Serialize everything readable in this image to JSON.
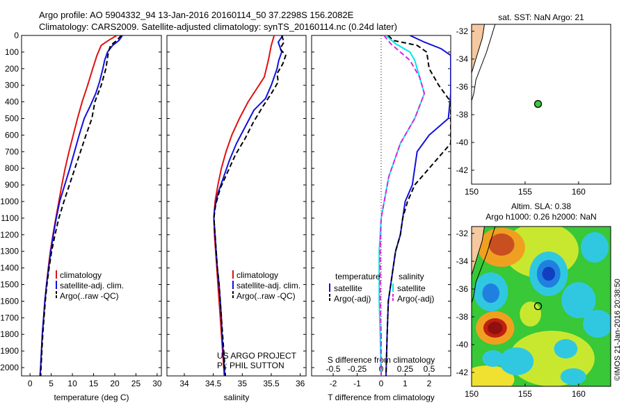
{
  "header": {
    "line1": "Argo profile: AO 5904332_94 13-Jan-2016 20160114_50 37.2298S 156.2082E",
    "line2": "Climatology: CARS2009. Satellite-adjusted climatology: synTS_20160114.nc (0.24d later)"
  },
  "colors": {
    "climatology": "#e01010",
    "satellite": "#1010e0",
    "argo": "#000000",
    "sat_salinity": "#00e8e8",
    "argo_salinity_diff": "#e020e0",
    "land": "#f5c8a0"
  },
  "chart_data": [
    {
      "type": "line",
      "xlabel": "temperature (deg C)",
      "ylim": [
        2050,
        0
      ],
      "xlim": [
        -2,
        31
      ],
      "x_ticks": [
        0,
        5,
        10,
        15,
        20,
        25,
        30
      ],
      "y_ticks": [
        0,
        100,
        200,
        300,
        400,
        500,
        600,
        700,
        800,
        900,
        1000,
        1100,
        1200,
        1300,
        1400,
        1500,
        1600,
        1700,
        1800,
        1900,
        2000
      ],
      "legend": [
        "climatology",
        "satellite-adj. clim.",
        "Argo(..raw -QC)"
      ],
      "series": [
        {
          "name": "climatology",
          "color": "#e01010",
          "dash": "",
          "points": [
            [
              20.5,
              0
            ],
            [
              18.5,
              30
            ],
            [
              16.8,
              60
            ],
            [
              15.8,
              120
            ],
            [
              14.8,
              200
            ],
            [
              13.6,
              300
            ],
            [
              12.3,
              400
            ],
            [
              11.2,
              500
            ],
            [
              10.2,
              600
            ],
            [
              9.2,
              700
            ],
            [
              8.3,
              800
            ],
            [
              7.5,
              900
            ],
            [
              6.8,
              1000
            ],
            [
              6.1,
              1100
            ],
            [
              5.4,
              1200
            ],
            [
              4.8,
              1300
            ],
            [
              4.3,
              1400
            ],
            [
              3.9,
              1500
            ],
            [
              3.5,
              1600
            ],
            [
              3.2,
              1700
            ],
            [
              2.9,
              1800
            ],
            [
              2.7,
              1900
            ],
            [
              2.5,
              2000
            ],
            [
              2.4,
              2060
            ]
          ]
        },
        {
          "name": "satellite-adj. clim.",
          "color": "#1010e0",
          "dash": "",
          "points": [
            [
              21.8,
              0
            ],
            [
              21.0,
              30
            ],
            [
              19.5,
              60
            ],
            [
              18.3,
              100
            ],
            [
              17.6,
              150
            ],
            [
              17.2,
              200
            ],
            [
              16.4,
              280
            ],
            [
              15.5,
              350
            ],
            [
              14.1,
              430
            ],
            [
              12.8,
              500
            ],
            [
              11.6,
              600
            ],
            [
              10.5,
              700
            ],
            [
              9.4,
              800
            ],
            [
              8.2,
              900
            ],
            [
              7.0,
              1000
            ],
            [
              6.2,
              1100
            ],
            [
              5.5,
              1200
            ],
            [
              4.9,
              1300
            ],
            [
              4.4,
              1400
            ],
            [
              3.9,
              1500
            ],
            [
              3.5,
              1600
            ],
            [
              3.2,
              1700
            ],
            [
              2.9,
              1800
            ],
            [
              2.7,
              1900
            ],
            [
              2.5,
              2000
            ],
            [
              2.3,
              2060
            ]
          ]
        },
        {
          "name": "Argo(..raw -QC)",
          "color": "#000000",
          "dash": "7,4",
          "points": [
            [
              21.5,
              0
            ],
            [
              20.5,
              30
            ],
            [
              19.0,
              60
            ],
            [
              18.5,
              100
            ],
            [
              17.9,
              200
            ],
            [
              16.8,
              300
            ],
            [
              15.3,
              400
            ],
            [
              14.6,
              500
            ],
            [
              13.2,
              600
            ],
            [
              11.9,
              700
            ],
            [
              10.6,
              800
            ],
            [
              9.3,
              900
            ],
            [
              8.0,
              1000
            ],
            [
              6.8,
              1100
            ],
            [
              5.9,
              1200
            ],
            [
              5.1,
              1300
            ],
            [
              4.5,
              1400
            ],
            [
              4.0,
              1500
            ],
            [
              3.6,
              1600
            ],
            [
              3.3,
              1700
            ],
            [
              3.0,
              1800
            ],
            [
              2.8,
              1900
            ],
            [
              2.6,
              2000
            ],
            [
              2.5,
              2060
            ]
          ]
        }
      ]
    },
    {
      "type": "line",
      "xlabel": "salinity",
      "ylim": [
        2050,
        0
      ],
      "xlim": [
        33.7,
        36.1
      ],
      "x_ticks": [
        34,
        34.5,
        35,
        35.5,
        36
      ],
      "legend": [
        "climatology",
        "satellite-adj. clim.",
        "Argo(..raw -QC)"
      ],
      "annotation": [
        "US ARGO PROJECT",
        "PI: PHIL SUTTON"
      ],
      "series": [
        {
          "name": "climatology",
          "color": "#e01010",
          "dash": "",
          "points": [
            [
              35.55,
              0
            ],
            [
              35.5,
              60
            ],
            [
              35.45,
              150
            ],
            [
              35.38,
              250
            ],
            [
              35.25,
              320
            ],
            [
              35.1,
              400
            ],
            [
              34.95,
              500
            ],
            [
              34.82,
              600
            ],
            [
              34.72,
              700
            ],
            [
              34.64,
              800
            ],
            [
              34.58,
              900
            ],
            [
              34.53,
              1000
            ],
            [
              34.51,
              1100
            ],
            [
              34.52,
              1200
            ],
            [
              34.54,
              1300
            ],
            [
              34.56,
              1400
            ],
            [
              34.58,
              1500
            ],
            [
              34.6,
              1600
            ],
            [
              34.62,
              1700
            ],
            [
              34.64,
              1800
            ],
            [
              34.66,
              1900
            ],
            [
              34.68,
              2000
            ],
            [
              34.69,
              2060
            ]
          ]
        },
        {
          "name": "satellite-adj. clim.",
          "color": "#1010e0",
          "dash": "",
          "points": [
            [
              35.7,
              0
            ],
            [
              35.62,
              40
            ],
            [
              35.68,
              100
            ],
            [
              35.63,
              150
            ],
            [
              35.6,
              200
            ],
            [
              35.55,
              250
            ],
            [
              35.5,
              300
            ],
            [
              35.4,
              380
            ],
            [
              35.2,
              450
            ],
            [
              35.05,
              550
            ],
            [
              34.9,
              650
            ],
            [
              34.78,
              750
            ],
            [
              34.68,
              850
            ],
            [
              34.58,
              950
            ],
            [
              34.52,
              1050
            ],
            [
              34.51,
              1100
            ],
            [
              34.53,
              1200
            ],
            [
              34.55,
              1300
            ],
            [
              34.57,
              1400
            ],
            [
              34.6,
              1500
            ],
            [
              34.62,
              1600
            ],
            [
              34.64,
              1700
            ],
            [
              34.65,
              1800
            ],
            [
              34.67,
              1900
            ],
            [
              34.69,
              2000
            ],
            [
              34.7,
              2060
            ]
          ]
        },
        {
          "name": "Argo(..raw -QC)",
          "color": "#000000",
          "dash": "7,4",
          "points": [
            [
              35.68,
              0
            ],
            [
              35.72,
              40
            ],
            [
              35.65,
              80
            ],
            [
              35.75,
              120
            ],
            [
              35.7,
              170
            ],
            [
              35.6,
              230
            ],
            [
              35.62,
              280
            ],
            [
              35.5,
              350
            ],
            [
              35.35,
              430
            ],
            [
              35.18,
              530
            ],
            [
              35.05,
              620
            ],
            [
              34.88,
              720
            ],
            [
              34.75,
              820
            ],
            [
              34.62,
              920
            ],
            [
              34.54,
              1020
            ],
            [
              34.51,
              1100
            ],
            [
              34.53,
              1200
            ],
            [
              34.55,
              1300
            ],
            [
              34.57,
              1400
            ],
            [
              34.6,
              1500
            ],
            [
              34.62,
              1600
            ],
            [
              34.64,
              1700
            ],
            [
              34.66,
              1800
            ],
            [
              34.68,
              1900
            ],
            [
              34.7,
              2000
            ],
            [
              34.71,
              2060
            ]
          ]
        }
      ]
    },
    {
      "type": "line",
      "xlabel": "T difference from climatology",
      "top_label": "S difference from climatology",
      "ylim": [
        2050,
        0
      ],
      "xlim": [
        -2.9,
        2.9
      ],
      "x_ticks": [
        -2,
        -1,
        0,
        1,
        2
      ],
      "top_ticks": [
        {
          "v": -0.5,
          "t": "-0.5"
        },
        {
          "v": -0.25,
          "t": "-0.25"
        },
        {
          "v": 0,
          "t": "0"
        },
        {
          "v": 0.25,
          "t": "0.25"
        },
        {
          "v": 0.5,
          "t": "0.5"
        }
      ],
      "s_scale": 4,
      "legend_t_title": "temperature",
      "legend_s_title": "salinity",
      "legend_t": [
        "satellite",
        "Argo(-adj)"
      ],
      "legend_s": [
        "satellite",
        "Argo(-adj)"
      ],
      "series": [
        {
          "name": "satellite",
          "color": "#1010e0",
          "dash": "",
          "scale": "T",
          "points": [
            [
              1.2,
              0
            ],
            [
              1.8,
              40
            ],
            [
              2.5,
              80
            ],
            [
              2.9,
              120
            ],
            [
              2.9,
              350
            ],
            [
              2.8,
              500
            ],
            [
              2.0,
              600
            ],
            [
              1.5,
              700
            ],
            [
              1.3,
              900
            ],
            [
              1.0,
              1000
            ],
            [
              0.9,
              1100
            ],
            [
              0.8,
              1200
            ],
            [
              0.6,
              1300
            ],
            [
              0.5,
              1400
            ],
            [
              0.4,
              1500
            ],
            [
              0.3,
              1600
            ],
            [
              0.25,
              1800
            ],
            [
              0.2,
              2060
            ]
          ]
        },
        {
          "name": "Argo(-adj)",
          "color": "#000000",
          "dash": "7,4",
          "scale": "T",
          "points": [
            [
              0.3,
              0
            ],
            [
              0.5,
              30
            ],
            [
              1.5,
              60
            ],
            [
              1.9,
              100
            ],
            [
              2.0,
              200
            ],
            [
              2.4,
              300
            ],
            [
              2.9,
              400
            ],
            [
              2.9,
              650
            ],
            [
              2.0,
              800
            ],
            [
              1.4,
              900
            ],
            [
              1.1,
              1000
            ],
            [
              0.9,
              1100
            ],
            [
              0.8,
              1200
            ],
            [
              0.6,
              1300
            ],
            [
              0.5,
              1400
            ],
            [
              0.4,
              1500
            ],
            [
              0.3,
              1600
            ],
            [
              0.25,
              1800
            ],
            [
              0.2,
              2060
            ]
          ]
        },
        {
          "name": "satellite",
          "color": "#00e8e8",
          "dash": "",
          "scale": "S",
          "points": [
            [
              0.05,
              0
            ],
            [
              0.15,
              50
            ],
            [
              0.3,
              100
            ],
            [
              0.35,
              150
            ],
            [
              0.4,
              250
            ],
            [
              0.45,
              350
            ],
            [
              0.35,
              500
            ],
            [
              0.2,
              650
            ],
            [
              0.08,
              850
            ],
            [
              0.0,
              1100
            ],
            [
              -0.02,
              1300
            ],
            [
              -0.02,
              1600
            ],
            [
              -0.01,
              1800
            ],
            [
              0.0,
              2060
            ]
          ]
        },
        {
          "name": "Argo(-adj)",
          "color": "#e020e0",
          "dash": "7,4",
          "scale": "S",
          "points": [
            [
              0.03,
              0
            ],
            [
              0.1,
              50
            ],
            [
              0.2,
              100
            ],
            [
              0.3,
              150
            ],
            [
              0.4,
              250
            ],
            [
              0.45,
              350
            ],
            [
              0.35,
              500
            ],
            [
              0.2,
              650
            ],
            [
              0.08,
              850
            ],
            [
              0.0,
              1100
            ],
            [
              -0.01,
              1300
            ],
            [
              -0.01,
              1600
            ],
            [
              0.0,
              1800
            ],
            [
              0.0,
              2060
            ]
          ]
        }
      ]
    },
    {
      "type": "scatter",
      "title": "sat. SST: NaN Argo: 21",
      "xlim": [
        150,
        163
      ],
      "ylim": [
        -43,
        -31.5
      ],
      "x_ticks": [
        150,
        155,
        160
      ],
      "y_ticks": [
        -32,
        -34,
        -36,
        -38,
        -40,
        -42
      ],
      "argo_position": {
        "lon": 156.2082,
        "lat": -37.2298
      },
      "marker_color": "#3cc83c"
    },
    {
      "type": "heatmap",
      "title_lines": [
        "Altim. SLA: 0.38",
        "Argo h1000: 0.26 h2000: NaN"
      ],
      "xlim": [
        150,
        163
      ],
      "ylim": [
        -43,
        -31.5
      ],
      "x_ticks": [
        150,
        155,
        160
      ],
      "y_ticks": [
        -32,
        -34,
        -36,
        -38,
        -40,
        -42
      ],
      "argo_position": {
        "lon": 156.2082,
        "lat": -37.2298
      },
      "watermark": "©IMOS 21-Jan-2016 20:38:50"
    }
  ]
}
